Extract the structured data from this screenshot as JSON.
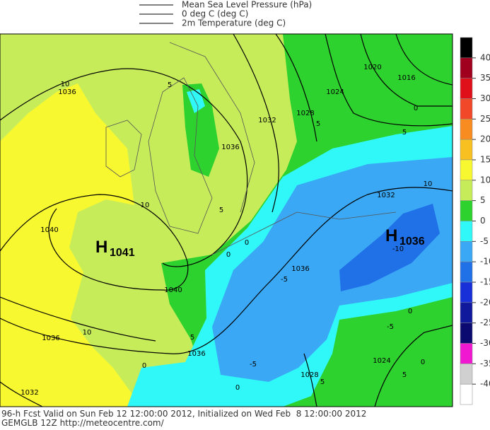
{
  "legend": [
    "Mean Sea Level Pressure (hPa)",
    "0 deg C (deg C)",
    "2m Temperature (deg C)"
  ],
  "colorbar": {
    "ticks": [
      40,
      35,
      30,
      25,
      20,
      15,
      10,
      5,
      0,
      -5,
      -10,
      -15,
      -20,
      -25,
      -30,
      -35,
      -40
    ],
    "colors": [
      "#000000",
      "#a0001e",
      "#e0101a",
      "#f04828",
      "#f88c20",
      "#f8c020",
      "#f8f830",
      "#c6ec5a",
      "#2ed22e",
      "#30f8f8",
      "#3aa8f4",
      "#2070e8",
      "#1830d8",
      "#10189c",
      "#0a0a70",
      "#f018d0",
      "#d0d0d0",
      "#ffffff"
    ]
  },
  "map": {
    "highs": [
      {
        "letter": "H",
        "value": "1041"
      },
      {
        "letter": "H",
        "value": "1036"
      }
    ],
    "contour_labels": [
      "10",
      "1036",
      "1036",
      "1032",
      "1028",
      "1024",
      "1020",
      "1016",
      "0",
      "5",
      "5",
      "5",
      "10",
      "1040",
      "5",
      "0",
      "0",
      "1036",
      "-5",
      "1032",
      "10",
      "-10",
      "1040",
      "1036",
      "10",
      "5",
      "1036",
      "0",
      "-5",
      "1028",
      "5",
      "1024",
      "-5",
      "0",
      "0",
      "5",
      "0",
      "1032"
    ]
  },
  "footer": [
    "96-h Fcst Valid on Sun Feb 12 12:00:00 2012, Initialized on Wed Feb  8 12:00:00 2012",
    "GEMGLB 12Z http://meteocentre.com/"
  ]
}
